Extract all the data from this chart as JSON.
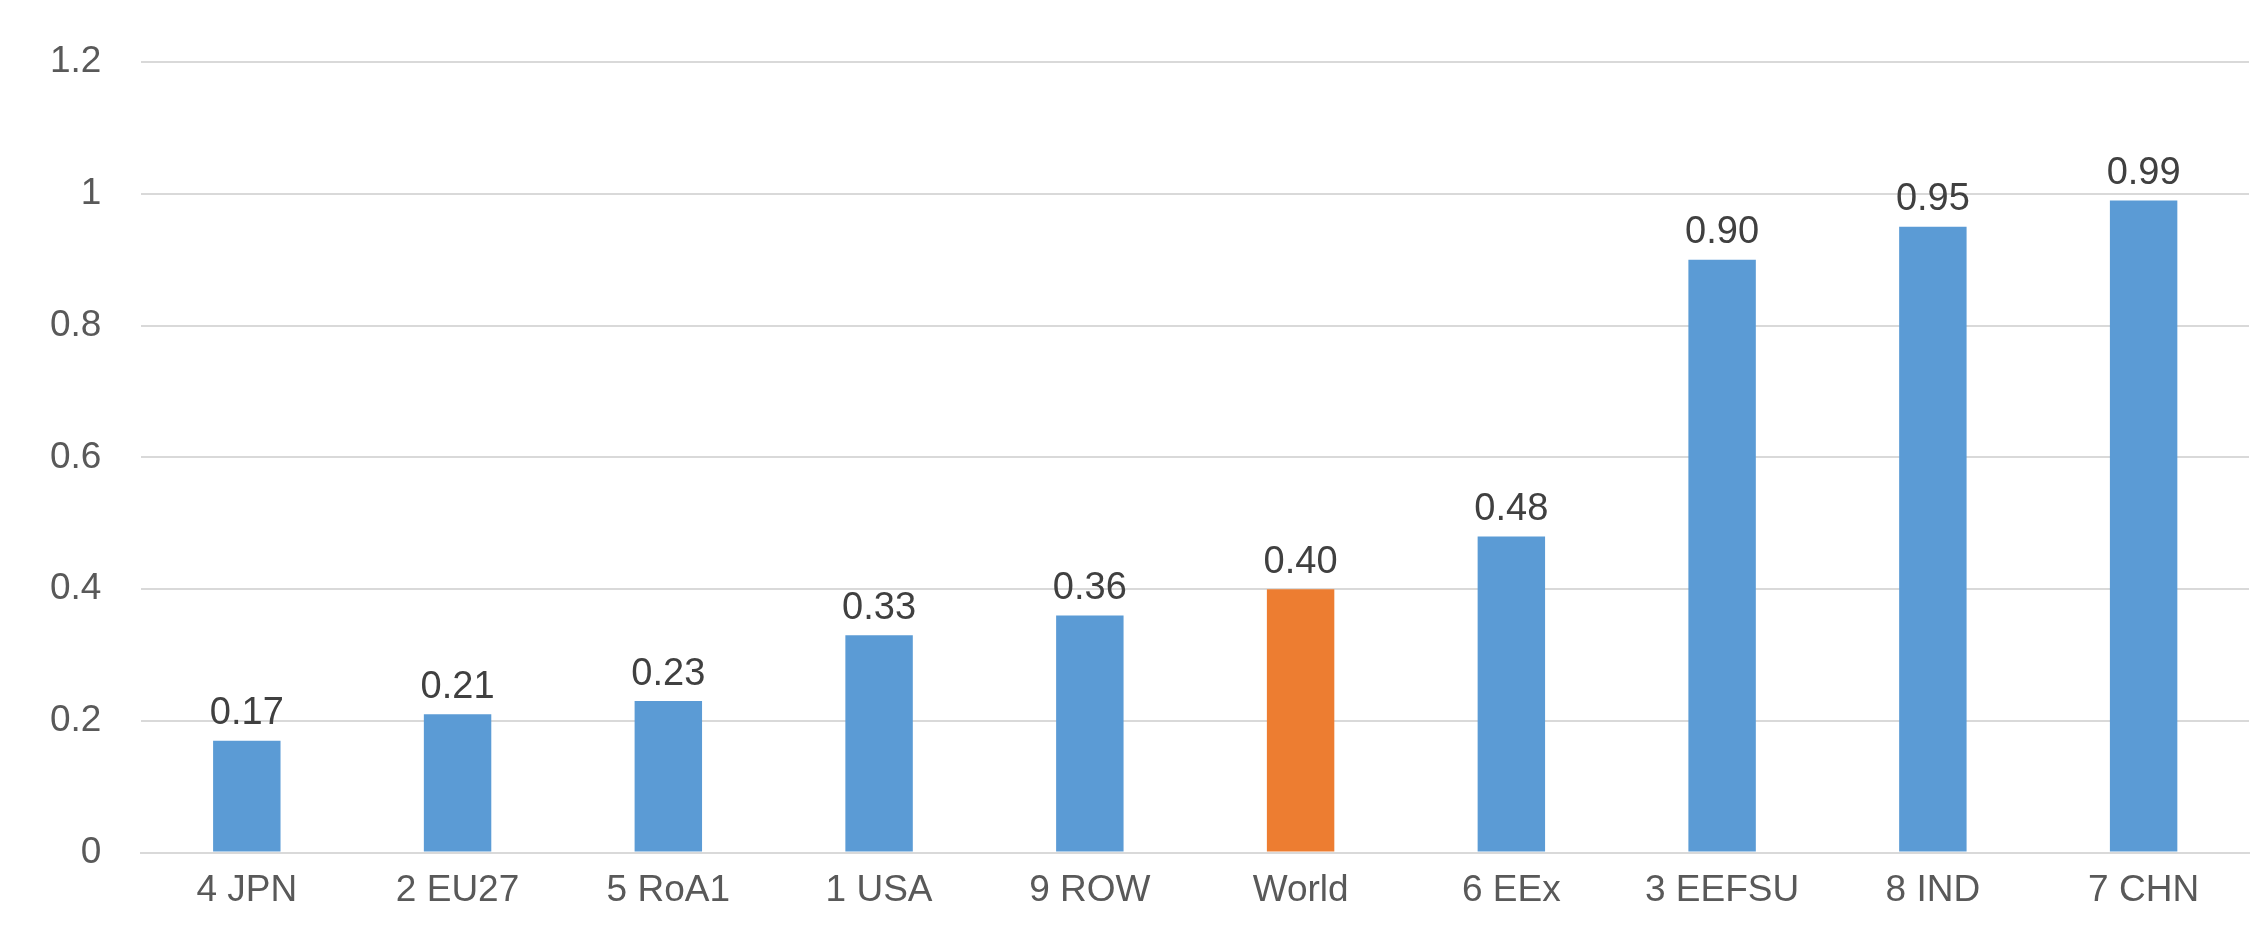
{
  "chart_data": {
    "type": "bar",
    "categories": [
      "4 JPN",
      "2 EU27",
      "5 RoA1",
      "1 USA",
      "9 ROW",
      "World",
      "6 EEx",
      "3 EEFSU",
      "8 IND",
      "7 CHN"
    ],
    "values": [
      0.17,
      0.21,
      0.23,
      0.33,
      0.36,
      0.4,
      0.48,
      0.9,
      0.95,
      0.99
    ],
    "value_labels": [
      "0.17",
      "0.21",
      "0.23",
      "0.33",
      "0.36",
      "0.40",
      "0.48",
      "0.90",
      "0.95",
      "0.99"
    ],
    "colors": [
      "#5b9bd5",
      "#5b9bd5",
      "#5b9bd5",
      "#5b9bd5",
      "#5b9bd5",
      "#ed7d31",
      "#5b9bd5",
      "#5b9bd5",
      "#5b9bd5",
      "#5b9bd5"
    ],
    "ylim": [
      0,
      1.2
    ],
    "yticks": [
      0,
      0.2,
      0.4,
      0.6,
      0.8,
      1,
      1.2
    ],
    "grid": "y",
    "legend": false
  }
}
